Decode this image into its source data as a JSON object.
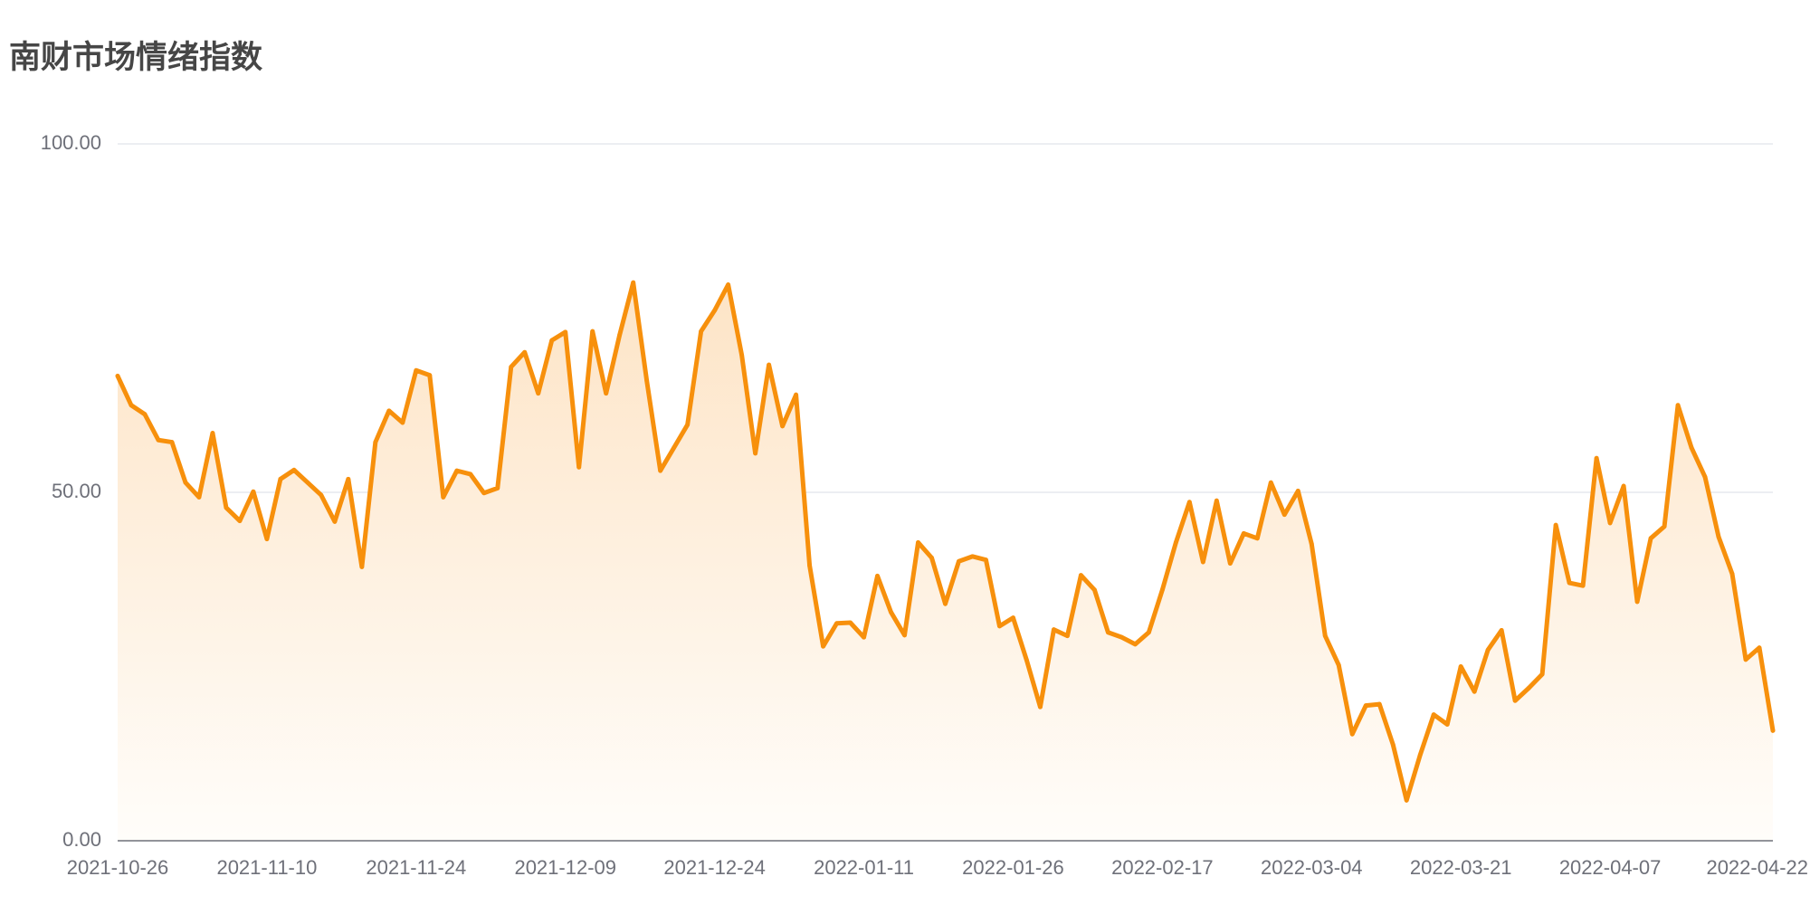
{
  "chart_data": {
    "type": "area",
    "title": "南财市场情绪指数",
    "xlabel": "",
    "ylabel": "",
    "ylim": [
      0,
      100
    ],
    "y_ticks": [
      {
        "value": 100,
        "label": "100.00"
      },
      {
        "value": 50,
        "label": "50.00"
      },
      {
        "value": 0,
        "label": "0.00"
      }
    ],
    "x_tick_labels": [
      "2021-10-26",
      "2021-11-10",
      "2021-11-24",
      "2021-12-09",
      "2021-12-24",
      "2022-01-11",
      "2022-01-26",
      "2022-02-17",
      "2022-03-04",
      "2022-03-21",
      "2022-04-07",
      "2022-04-22"
    ],
    "x_tick_every": 11,
    "grid": "horizontal",
    "legend": "none",
    "colors": {
      "line": "#f7900c",
      "area_top": "#fde4c6",
      "area_bottom": "#fffdfa",
      "grid": "#e0e3ea",
      "axis": "#6e7079"
    },
    "series": [
      {
        "values": [
          66.7,
          62.5,
          61.2,
          57.5,
          57.2,
          51.4,
          49.3,
          58.5,
          47.8,
          45.9,
          50.1,
          43.3,
          51.9,
          53.2,
          51.4,
          49.6,
          45.8,
          51.9,
          39.3,
          57.2,
          61.7,
          60.0,
          67.5,
          66.8,
          49.3,
          53.1,
          52.6,
          49.9,
          50.6,
          68.0,
          70.1,
          64.2,
          71.8,
          73.0,
          53.6,
          73.1,
          64.2,
          72.6,
          80.1,
          66.0,
          53.1,
          56.4,
          59.7,
          73.1,
          76.1,
          79.8,
          69.7,
          55.6,
          68.3,
          59.5,
          64.0,
          39.5,
          27.9,
          31.2,
          31.3,
          29.2,
          38.0,
          32.8,
          29.5,
          42.8,
          40.6,
          34.0,
          40.1,
          40.8,
          40.3,
          30.8,
          32.0,
          25.9,
          19.2,
          30.3,
          29.4,
          38.1,
          36.0,
          29.9,
          29.2,
          28.2,
          29.9,
          36.0,
          42.8,
          48.6,
          40.0,
          48.8,
          39.8,
          44.1,
          43.4,
          51.4,
          46.8,
          50.2,
          42.6,
          29.4,
          25.2,
          15.3,
          19.4,
          19.6,
          13.8,
          5.8,
          12.3,
          18.1,
          16.7,
          25.0,
          21.4,
          27.4,
          30.2,
          20.1,
          21.9,
          23.9,
          45.3,
          37.0,
          36.6,
          54.9,
          45.6,
          50.9,
          34.3,
          43.4,
          45.1,
          62.5,
          56.4,
          52.2,
          43.6,
          38.3,
          26.0,
          27.7,
          15.8
        ]
      }
    ]
  }
}
